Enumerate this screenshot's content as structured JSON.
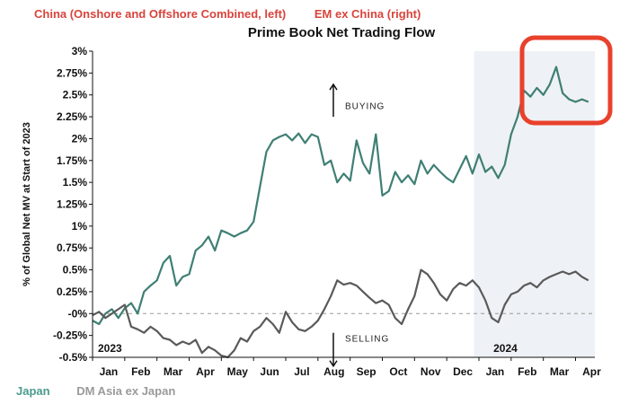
{
  "legend_top": {
    "china": "China (Onshore and Offshore Combined, left)",
    "em": "EM ex China (right)"
  },
  "legend_bottom": {
    "japan": "Japan",
    "dm_asia": "DM Asia ex Japan"
  },
  "colors": {
    "highlight_box": "#e8412c",
    "series_main": "#3f7f74",
    "series_secondary": "#5a5a5a",
    "shade_2024": "#eef1f5",
    "legend_red": "#d9433b",
    "legend_teal": "#4a9a8e",
    "legend_gray": "#9a9a9a"
  },
  "chart_data": {
    "type": "line",
    "title": "Prime Book Net Trading Flow",
    "ylabel": "% of Global Net MV at Start of 2023",
    "ylim": [
      -0.5,
      3.0
    ],
    "yticks": [
      "3%",
      "2.75%",
      "2.5%",
      "2.25%",
      "2%",
      "1.75%",
      "1.5%",
      "1.25%",
      "1%",
      "0.75%",
      "0.5%",
      "0.25%",
      "-0%",
      "-0.25%",
      "-0.5%"
    ],
    "xticks": [
      "Jan",
      "Feb",
      "Mar",
      "Apr",
      "May",
      "Jun",
      "Jul",
      "Aug",
      "Sep",
      "Oct",
      "Nov",
      "Dec",
      "Jan",
      "Feb",
      "Mar",
      "Apr"
    ],
    "year_labels": [
      "2023",
      "2024"
    ],
    "annotations": [
      "BUYING",
      "SELLING"
    ],
    "zero_line": "dashed",
    "shaded_region_start_month": 12,
    "series": [
      {
        "x": [
          0,
          0.2,
          0.4,
          0.6,
          0.8,
          1.0,
          1.2,
          1.4,
          1.6,
          1.8,
          2.0,
          2.2,
          2.4,
          2.6,
          2.8,
          3.0,
          3.2,
          3.4,
          3.6,
          3.8,
          4.0,
          4.2,
          4.4,
          4.6,
          4.8,
          5.0,
          5.2,
          5.4,
          5.6,
          5.8,
          6.0,
          6.2,
          6.4,
          6.6,
          6.8,
          7.0,
          7.2,
          7.4,
          7.6,
          7.8,
          8.0,
          8.2,
          8.4,
          8.6,
          8.8,
          9.0,
          9.2,
          9.4,
          9.6,
          9.8,
          10.0,
          10.2,
          10.4,
          10.6,
          10.8,
          11.0,
          11.2,
          11.4,
          11.6,
          11.8,
          12.0,
          12.2,
          12.4,
          12.6,
          12.8,
          13.0,
          13.2,
          13.4,
          13.6,
          13.8,
          14.0,
          14.2,
          14.4,
          14.6,
          14.8,
          15.0,
          15.2,
          15.4
        ],
        "values": [
          -0.08,
          -0.12,
          0.0,
          0.05,
          -0.05,
          0.06,
          0.12,
          0.0,
          0.25,
          0.32,
          0.38,
          0.58,
          0.66,
          0.32,
          0.42,
          0.45,
          0.72,
          0.78,
          0.88,
          0.72,
          0.95,
          0.92,
          0.88,
          0.92,
          0.95,
          1.05,
          1.45,
          1.85,
          1.98,
          2.02,
          2.05,
          1.98,
          2.06,
          1.95,
          2.05,
          2.02,
          1.7,
          1.75,
          1.5,
          1.6,
          1.52,
          1.98,
          1.72,
          1.6,
          2.05,
          1.35,
          1.4,
          1.62,
          1.5,
          1.58,
          1.48,
          1.75,
          1.6,
          1.7,
          1.62,
          1.55,
          1.5,
          1.65,
          1.8,
          1.6,
          1.82,
          1.62,
          1.68,
          1.55,
          1.7,
          2.05,
          2.25,
          2.55,
          2.48,
          2.58,
          2.5,
          2.62,
          2.82,
          2.52,
          2.45,
          2.42,
          2.45,
          2.42
        ]
      },
      {
        "x": [
          0,
          0.2,
          0.4,
          0.6,
          0.8,
          1.0,
          1.2,
          1.4,
          1.6,
          1.8,
          2.0,
          2.2,
          2.4,
          2.6,
          2.8,
          3.0,
          3.2,
          3.4,
          3.6,
          3.8,
          4.0,
          4.2,
          4.4,
          4.6,
          4.8,
          5.0,
          5.2,
          5.4,
          5.6,
          5.8,
          6.0,
          6.2,
          6.4,
          6.6,
          6.8,
          7.0,
          7.2,
          7.4,
          7.6,
          7.8,
          8.0,
          8.2,
          8.4,
          8.6,
          8.8,
          9.0,
          9.2,
          9.4,
          9.6,
          9.8,
          10.0,
          10.2,
          10.4,
          10.6,
          10.8,
          11.0,
          11.2,
          11.4,
          11.6,
          11.8,
          12.0,
          12.2,
          12.4,
          12.6,
          12.8,
          13.0,
          13.2,
          13.4,
          13.6,
          13.8,
          14.0,
          14.2,
          14.4,
          14.6,
          14.8,
          15.0,
          15.2,
          15.4
        ],
        "values": [
          -0.02,
          0.02,
          -0.05,
          0.0,
          0.05,
          0.1,
          -0.15,
          -0.18,
          -0.22,
          -0.15,
          -0.2,
          -0.28,
          -0.3,
          -0.36,
          -0.32,
          -0.35,
          -0.3,
          -0.45,
          -0.38,
          -0.42,
          -0.48,
          -0.5,
          -0.42,
          -0.28,
          -0.32,
          -0.2,
          -0.15,
          -0.05,
          -0.12,
          -0.22,
          0.02,
          -0.1,
          -0.18,
          -0.2,
          -0.15,
          -0.08,
          0.05,
          0.2,
          0.38,
          0.33,
          0.35,
          0.32,
          0.25,
          0.18,
          0.12,
          0.15,
          0.1,
          -0.05,
          -0.12,
          0.05,
          0.2,
          0.5,
          0.45,
          0.35,
          0.22,
          0.15,
          0.28,
          0.35,
          0.32,
          0.38,
          0.3,
          0.15,
          -0.05,
          -0.1,
          0.1,
          0.22,
          0.25,
          0.32,
          0.35,
          0.3,
          0.38,
          0.42,
          0.45,
          0.48,
          0.45,
          0.48,
          0.42,
          0.38
        ]
      }
    ]
  }
}
